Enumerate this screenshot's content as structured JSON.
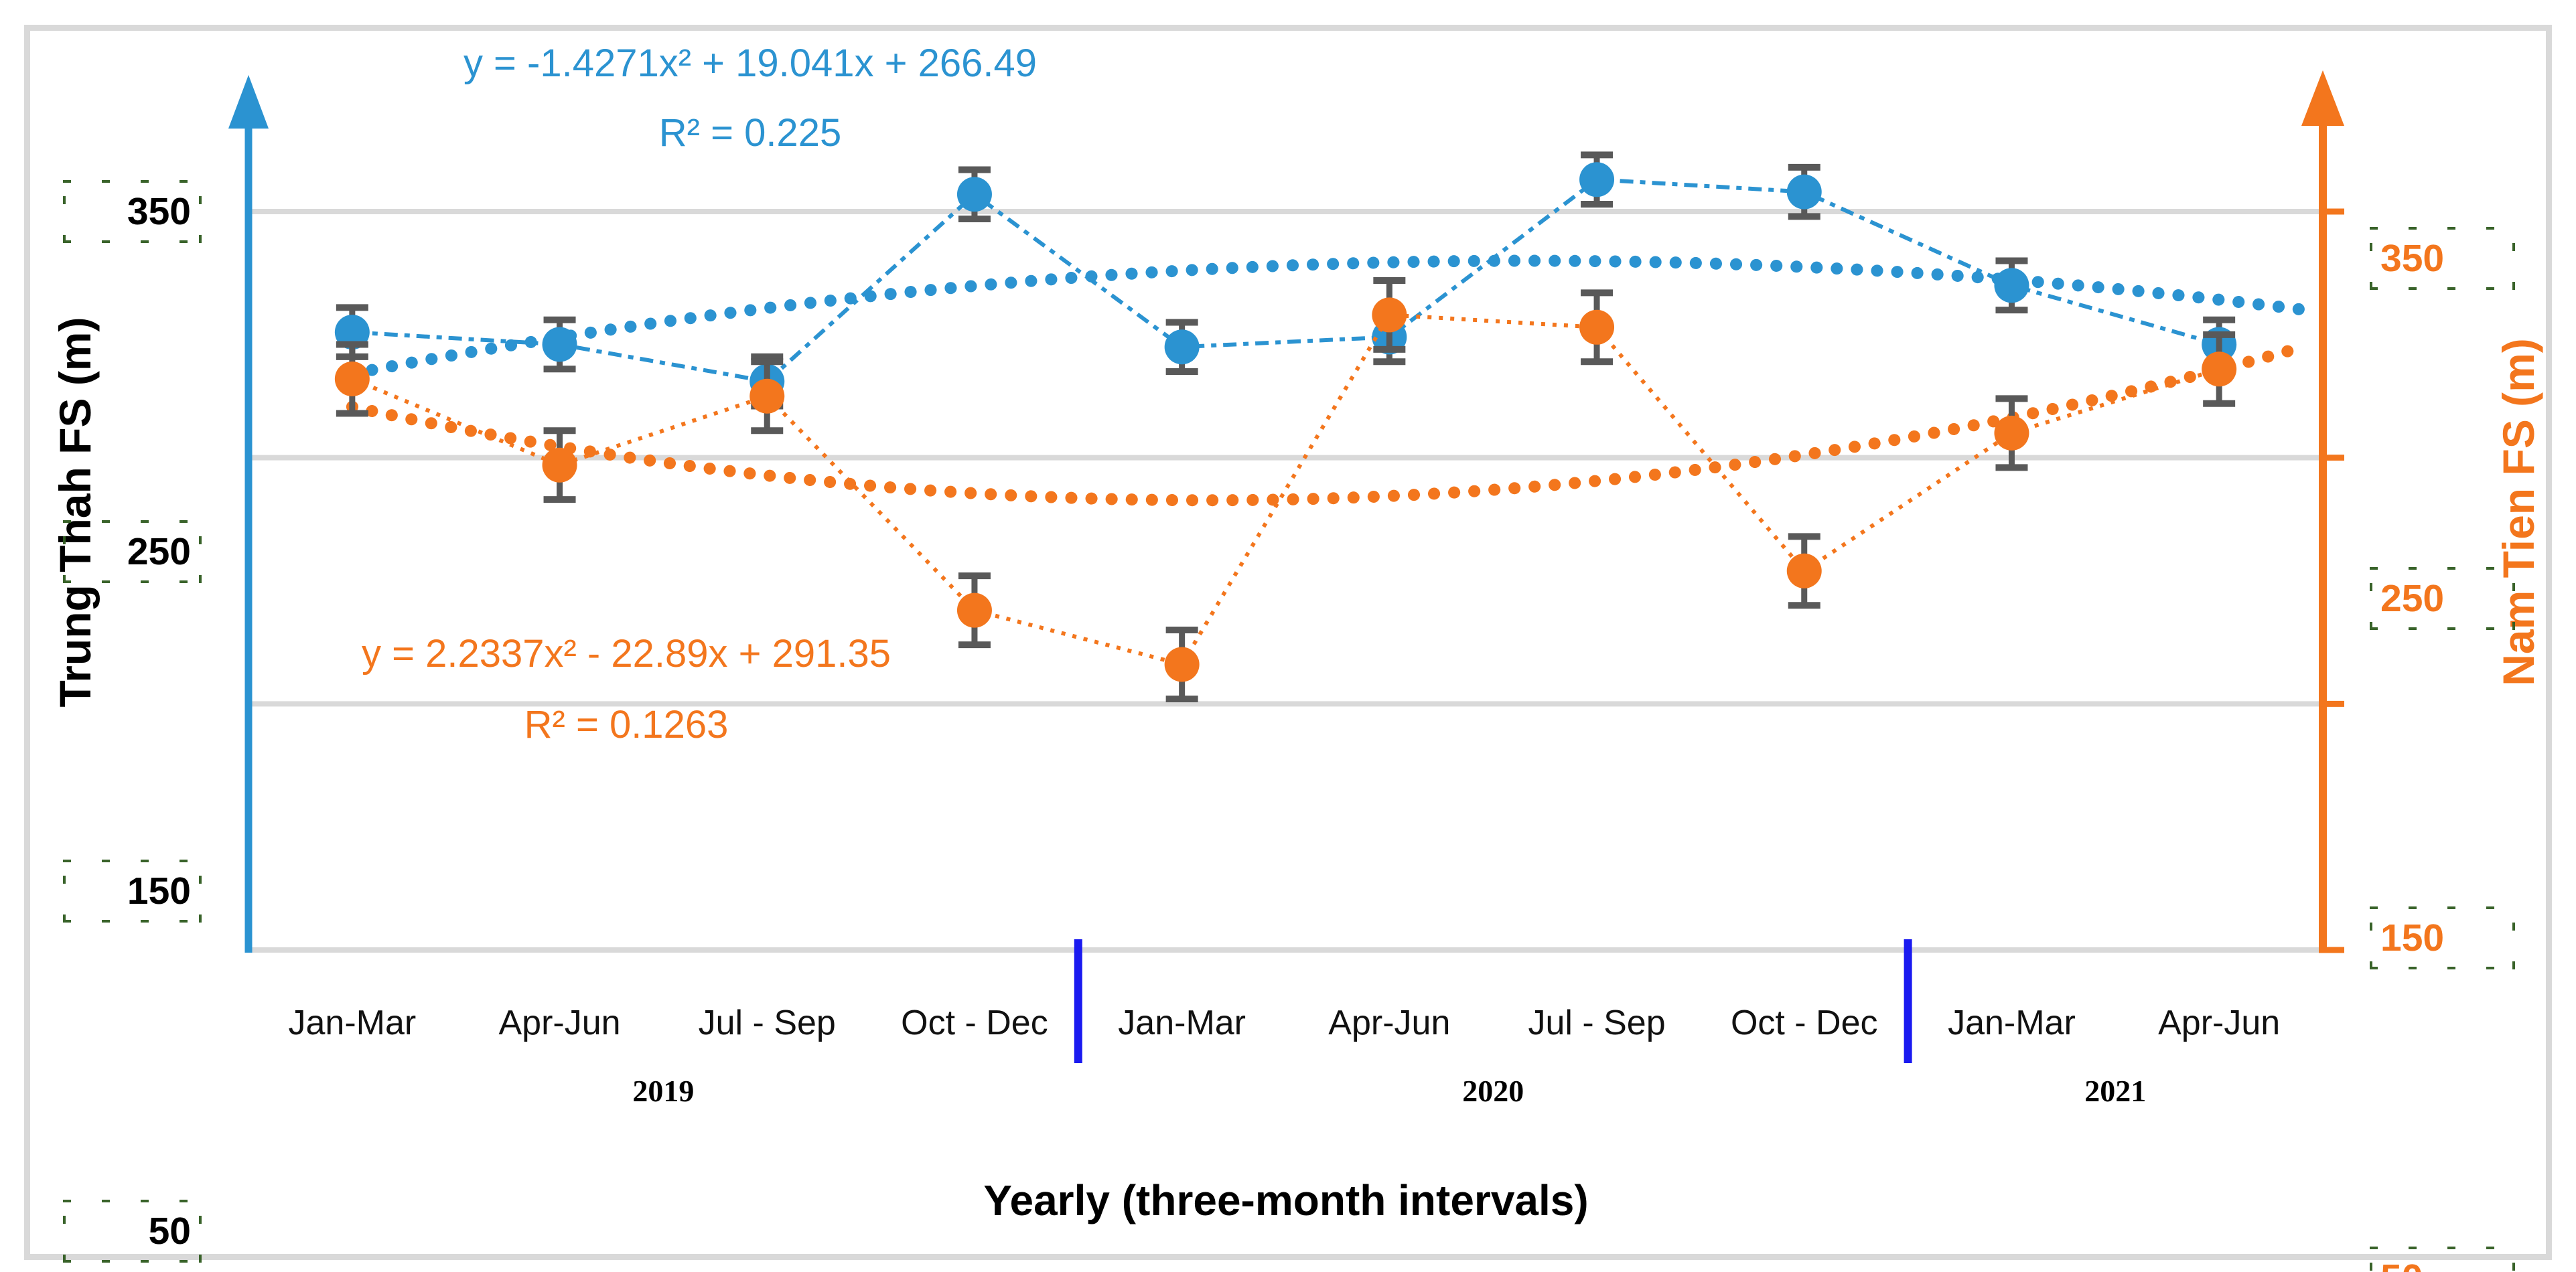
{
  "colors": {
    "gridline": "#D9D9D9",
    "error_bar": "#595959",
    "year_divider": "#1A1AF0",
    "frame_border": "#D9D9D9",
    "selection_marks": "#2F5B1F",
    "background": "#FFFFFF"
  },
  "chart_data": {
    "type": "line",
    "title": "",
    "xlabel": "Yearly (three-month intervals)",
    "ylabel_left": "Trung Thah FS (m)",
    "ylabel_right": "Nam Tien FS (m)",
    "categories": [
      "Jan-Mar",
      "Apr-Jun",
      "Jul - Sep",
      "Oct - Dec",
      "Jan-Mar",
      "Apr-Jun",
      "Jul - Sep",
      "Oct - Dec",
      "Jan-Mar",
      "Apr-Jun"
    ],
    "year_groups": [
      {
        "label": "2019",
        "span": 4
      },
      {
        "label": "2020",
        "span": 4
      },
      {
        "label": "2021",
        "span": 2
      }
    ],
    "y_ticks": [
      350,
      250,
      150,
      50
    ],
    "ylim": [
      50,
      380
    ],
    "grid": true,
    "legend_position": "none",
    "series": [
      {
        "name": "Trung Thah FS",
        "axis": "left",
        "color": "#2B93D1",
        "values": [
          301,
          296,
          281,
          357,
          295,
          299,
          363,
          358,
          320,
          296
        ],
        "error": 10,
        "line_dash": "dash",
        "trend": {
          "a": -1.4271,
          "b": 19.041,
          "c": 266.49,
          "equation": "y = -1.4271x² + 19.041x + 266.49",
          "r2_label": "R² = 0.225"
        }
      },
      {
        "name": "Nam Tien FS",
        "axis": "right",
        "color": "#F3761D",
        "values": [
          282,
          247,
          275,
          188,
          166,
          308,
          303,
          204,
          260,
          286
        ],
        "error": 14,
        "line_dash": "dot",
        "trend": {
          "a": 2.2337,
          "b": -22.89,
          "c": 291.35,
          "equation": "y = 2.2337x² - 22.89x + 291.35",
          "r2_label": "R² = 0.1263"
        }
      }
    ]
  }
}
